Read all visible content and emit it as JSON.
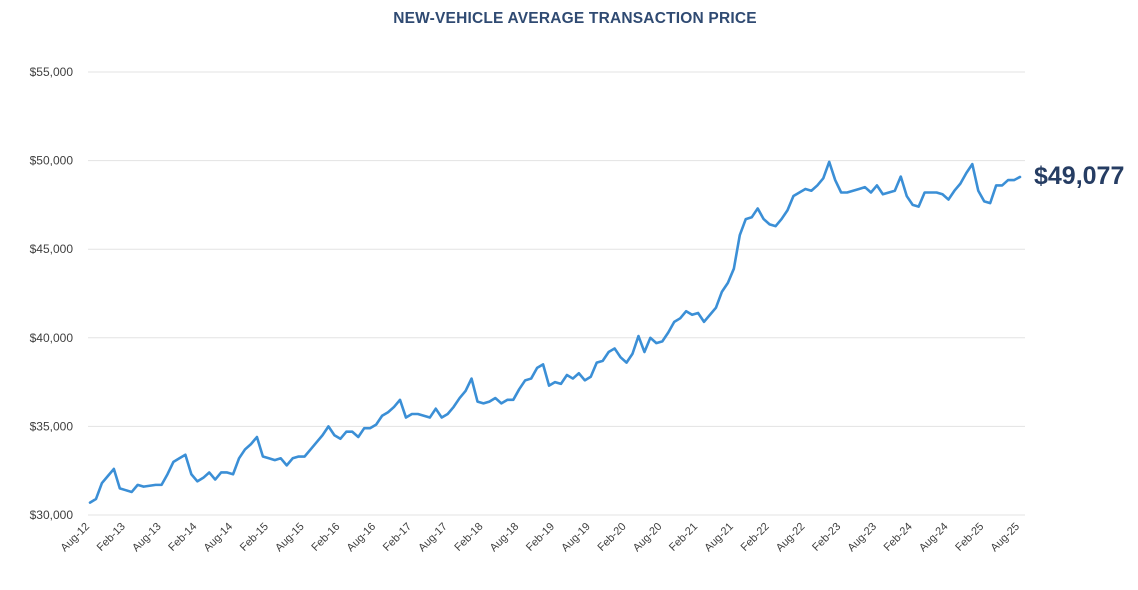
{
  "chart_data": {
    "type": "line",
    "title": "NEW-VEHICLE AVERAGE TRANSACTION PRICE",
    "xlabel": "",
    "ylabel": "",
    "ylim": [
      30000,
      55000
    ],
    "grid": true,
    "legend": "none",
    "colors": {
      "line": "#3b8fd6",
      "title": "#2f4a72",
      "end_label": "#263d63",
      "grid": "#e3e3e3",
      "tick_text": "#404040"
    },
    "y_ticks": [
      30000,
      35000,
      40000,
      45000,
      50000,
      55000
    ],
    "y_tick_labels": [
      "$30,000",
      "$35,000",
      "$40,000",
      "$45,000",
      "$50,000",
      "$55,000"
    ],
    "x_tick_labels": [
      "Aug-12",
      "Feb-13",
      "Aug-13",
      "Feb-14",
      "Aug-14",
      "Feb-15",
      "Aug-15",
      "Feb-16",
      "Aug-16",
      "Feb-17",
      "Aug-17",
      "Feb-18",
      "Aug-18",
      "Feb-19",
      "Aug-19",
      "Feb-20",
      "Aug-20",
      "Feb-21",
      "Aug-21",
      "Feb-22",
      "Aug-22",
      "Feb-23",
      "Aug-23",
      "Feb-24",
      "Aug-24",
      "Feb-25",
      "Aug-25"
    ],
    "series": [
      {
        "name": "Average Transaction Price",
        "start": "Aug-12",
        "end": "Aug-25",
        "frequency": "monthly",
        "values": [
          30700,
          30900,
          31800,
          32200,
          32600,
          31500,
          31400,
          31300,
          31700,
          31600,
          31650,
          31700,
          31700,
          32300,
          33000,
          33200,
          33400,
          32300,
          31900,
          32100,
          32400,
          32000,
          32400,
          32400,
          32300,
          33200,
          33700,
          34000,
          34400,
          33300,
          33200,
          33100,
          33200,
          32800,
          33200,
          33300,
          33300,
          33700,
          34100,
          34500,
          35000,
          34500,
          34300,
          34700,
          34700,
          34400,
          34900,
          34900,
          35100,
          35600,
          35800,
          36100,
          36500,
          35500,
          35700,
          35700,
          35600,
          35500,
          36000,
          35500,
          35700,
          36100,
          36600,
          37000,
          37700,
          36400,
          36300,
          36400,
          36600,
          36300,
          36500,
          36500,
          37100,
          37600,
          37700,
          38300,
          38500,
          37300,
          37500,
          37400,
          37900,
          37700,
          38000,
          37600,
          37800,
          38600,
          38700,
          39200,
          39400,
          38900,
          38600,
          39100,
          40100,
          39200,
          40000,
          39700,
          39800,
          40300,
          40900,
          41100,
          41500,
          41300,
          41400,
          40900,
          41300,
          41700,
          42600,
          43100,
          43900,
          45800,
          46700,
          46800,
          47300,
          46700,
          46400,
          46300,
          46700,
          47200,
          48000,
          48200,
          48400,
          48300,
          48600,
          49000,
          49929,
          48900,
          48200,
          48200,
          48300,
          48400,
          48500,
          48200,
          48600,
          48100,
          48200,
          48300,
          49100,
          48000,
          47500,
          47400,
          48200,
          48200,
          48200,
          48100,
          47800,
          48300,
          48700,
          49300,
          49800,
          48300,
          47700,
          47600,
          48600,
          48600,
          48900,
          48900,
          49077
        ]
      }
    ],
    "end_label": "$49,077",
    "end_value": 49077
  }
}
